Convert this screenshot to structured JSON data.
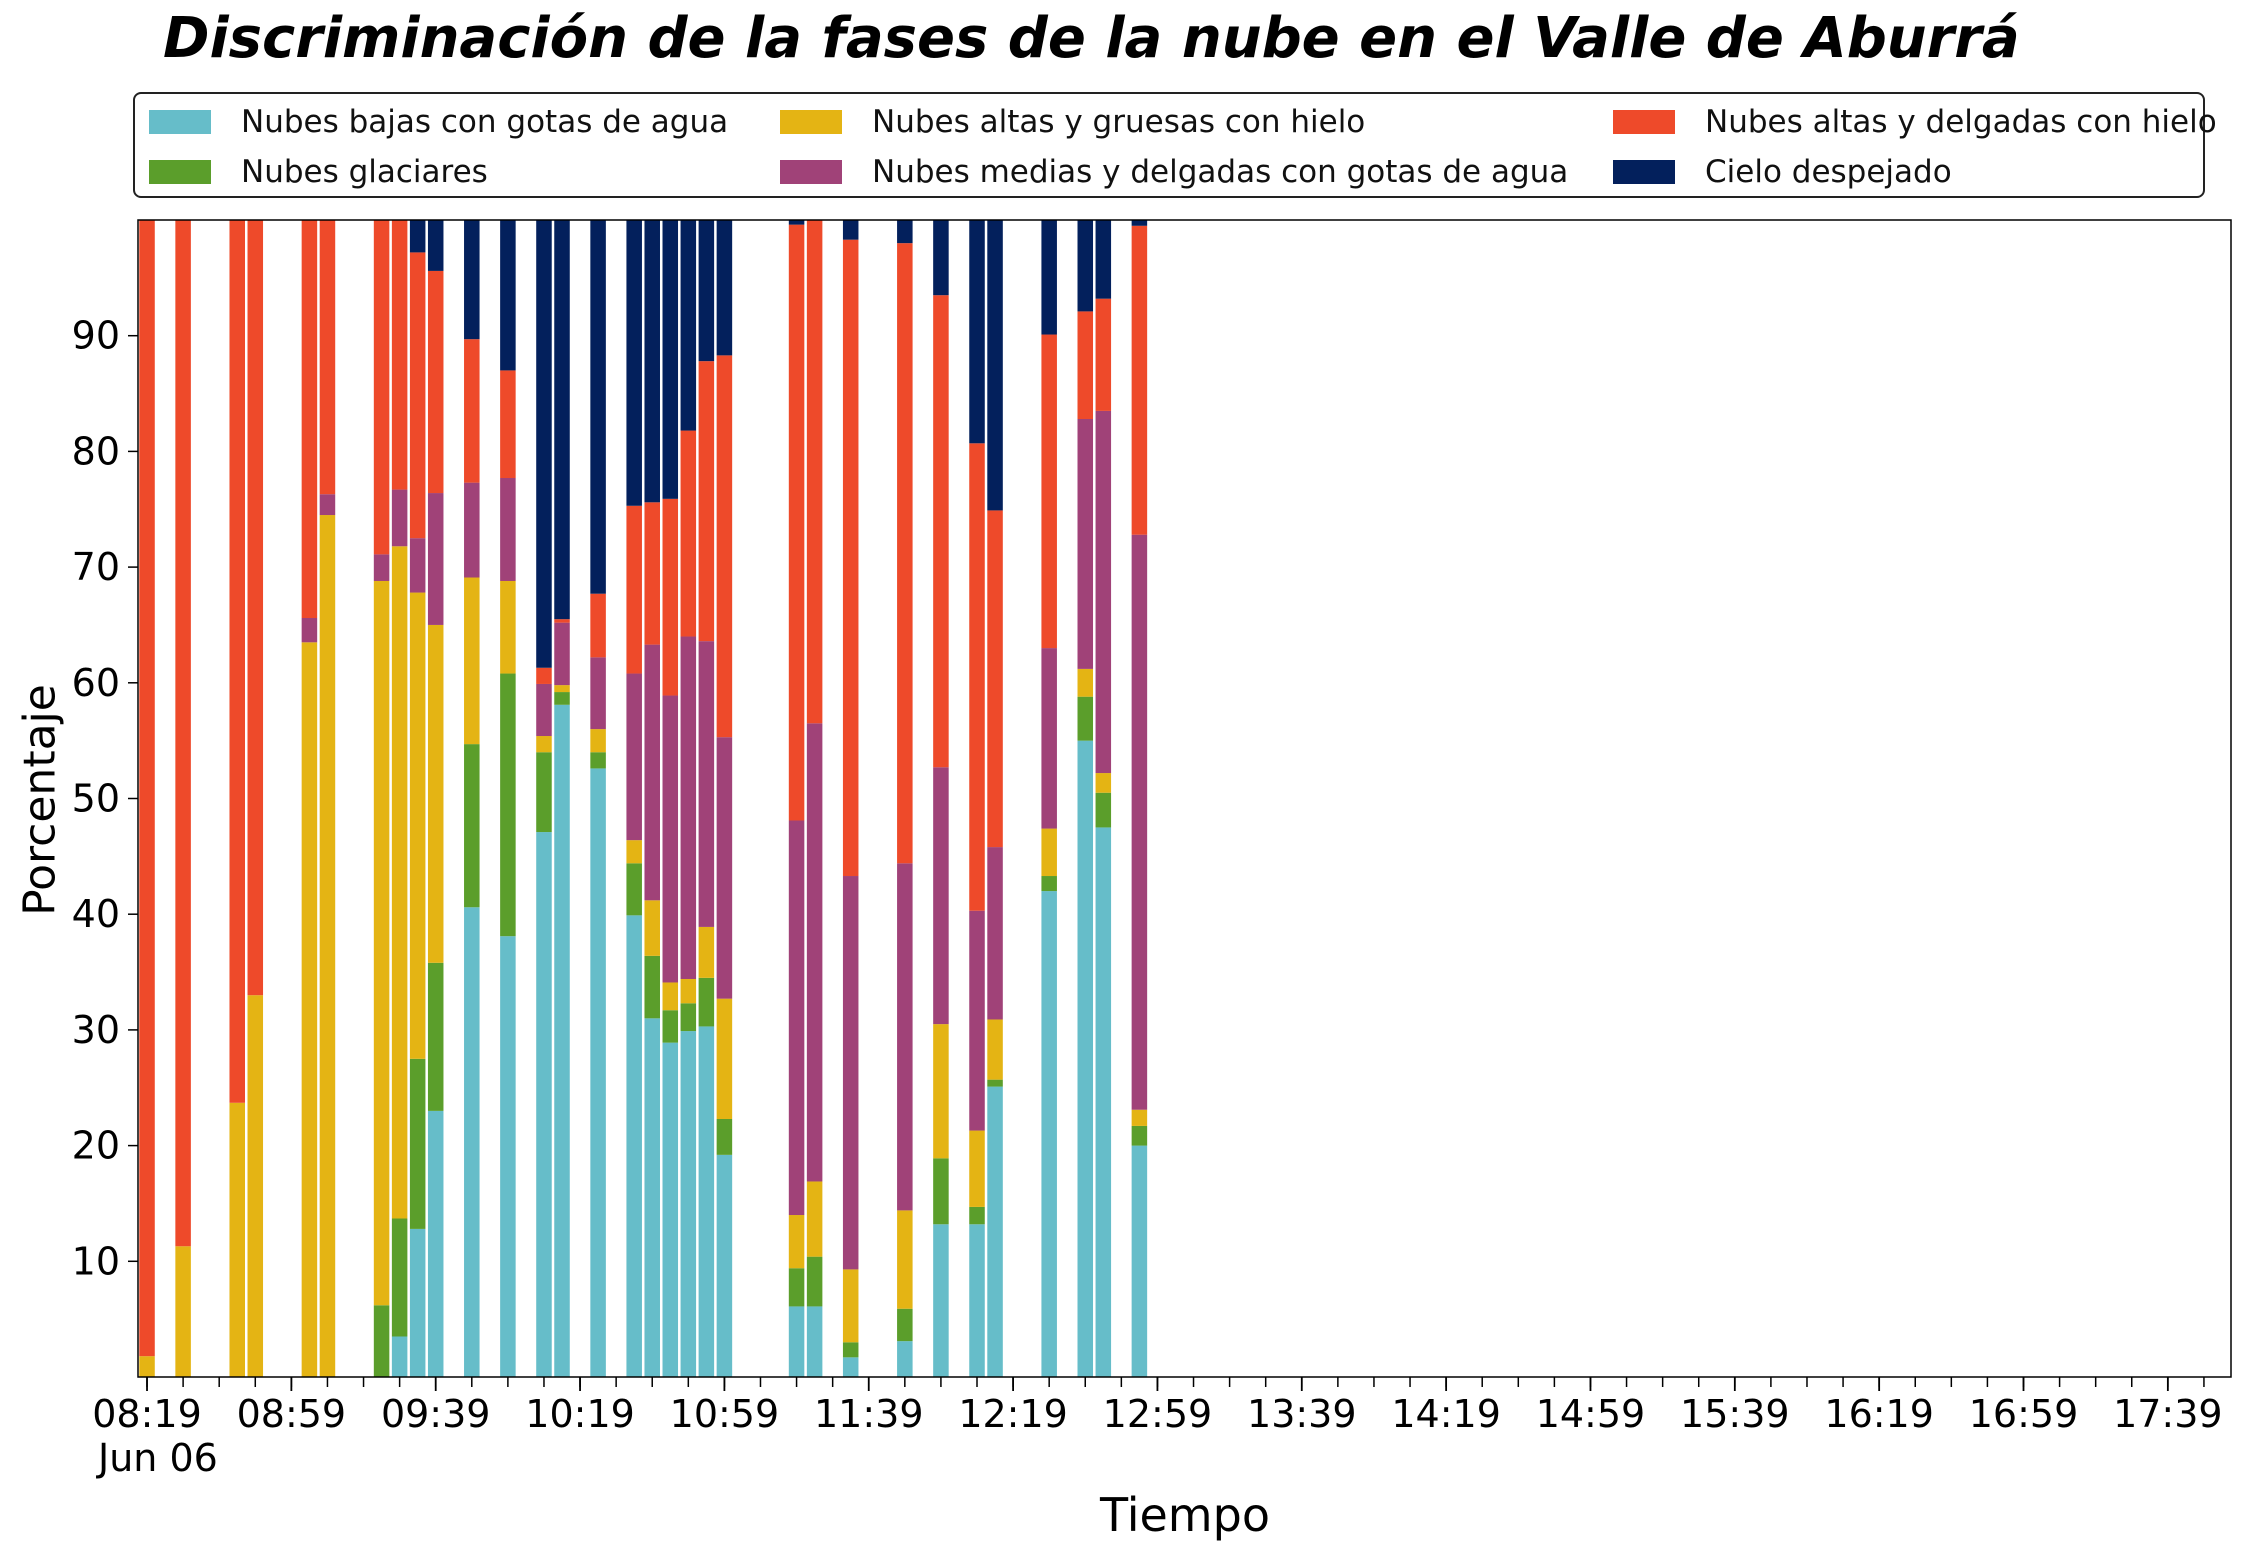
{
  "chart_data": {
    "type": "bar",
    "stacked": true,
    "title": "Discriminación de la fases de la nube en el Valle de Aburrá",
    "xlabel": "Tiempo",
    "ylabel": "Porcentaje",
    "date_label": "Jun 06",
    "ylim": [
      0,
      100
    ],
    "yticks": [
      10,
      20,
      30,
      40,
      50,
      60,
      70,
      80,
      90
    ],
    "xtick_labels": [
      "08:19",
      "08:59",
      "09:39",
      "10:19",
      "10:59",
      "11:39",
      "12:19",
      "12:59",
      "13:39",
      "14:19",
      "14:59",
      "15:39",
      "16:19",
      "16:59",
      "17:39"
    ],
    "legend_position": "top",
    "grid": false,
    "categories": [
      "08:19",
      "08:24",
      "08:29",
      "08:34",
      "08:39",
      "08:44",
      "08:49",
      "08:54",
      "08:59",
      "09:04",
      "09:09",
      "09:14",
      "09:19",
      "09:24",
      "09:29",
      "09:34",
      "09:39",
      "09:44",
      "09:49",
      "09:54",
      "09:59",
      "10:04",
      "10:09",
      "10:14",
      "10:19",
      "10:24",
      "10:29",
      "10:34",
      "10:39",
      "10:44",
      "10:49",
      "10:54",
      "10:59",
      "11:04",
      "11:09",
      "11:14",
      "11:19",
      "11:24",
      "11:29",
      "11:34",
      "11:39",
      "11:44",
      "11:49",
      "11:54",
      "11:59",
      "12:04",
      "12:09",
      "12:14",
      "12:19",
      "12:24",
      "12:29",
      "12:34",
      "12:39",
      "12:44",
      "12:49",
      "12:54",
      "12:59",
      "13:04",
      "13:09",
      "13:14",
      "13:19",
      "13:24",
      "13:29",
      "13:34",
      "13:39",
      "13:44",
      "13:49",
      "13:54",
      "13:59",
      "14:04",
      "14:09",
      "14:14",
      "14:19",
      "14:24",
      "14:29",
      "14:34",
      "14:39",
      "14:44",
      "14:49",
      "14:54",
      "14:59",
      "15:04",
      "15:09",
      "15:14",
      "15:19",
      "15:24",
      "15:29",
      "15:34",
      "15:39",
      "15:44",
      "15:49",
      "15:54",
      "15:59",
      "16:04",
      "16:09",
      "16:14",
      "16:19",
      "16:24",
      "16:29",
      "16:34",
      "16:39",
      "16:44",
      "16:49",
      "16:54",
      "16:59",
      "17:04",
      "17:09",
      "17:14",
      "17:19",
      "17:24",
      "17:29",
      "17:34",
      "17:39",
      "17:44",
      "17:49",
      "17:54"
    ],
    "bars": [
      {
        "time": "08:19",
        "values": [
          0,
          0,
          1.8,
          0,
          98.2,
          0
        ]
      },
      {
        "time": "08:29",
        "values": [
          0,
          0,
          11.3,
          0,
          88.7,
          0
        ]
      },
      {
        "time": "08:44",
        "values": [
          0,
          0,
          23.7,
          0,
          76.3,
          0
        ]
      },
      {
        "time": "08:49",
        "values": [
          0,
          0,
          33.0,
          0,
          67.0,
          0
        ]
      },
      {
        "time": "09:04",
        "values": [
          0,
          0,
          63.5,
          2.1,
          34.4,
          0
        ]
      },
      {
        "time": "09:09",
        "values": [
          0,
          0,
          74.5,
          1.8,
          23.7,
          0
        ]
      },
      {
        "time": "09:24",
        "values": [
          0,
          6.2,
          62.6,
          2.3,
          28.9,
          0
        ]
      },
      {
        "time": "09:29",
        "values": [
          3.5,
          10.2,
          58.1,
          4.9,
          23.3,
          0
        ]
      },
      {
        "time": "09:34",
        "values": [
          12.8,
          14.7,
          40.3,
          4.7,
          24.7,
          2.8
        ]
      },
      {
        "time": "09:39",
        "values": [
          23.0,
          12.8,
          29.2,
          11.4,
          19.2,
          4.4
        ]
      },
      {
        "time": "09:49",
        "values": [
          40.6,
          14.1,
          14.4,
          8.2,
          12.4,
          10.3
        ]
      },
      {
        "time": "09:59",
        "values": [
          38.1,
          22.7,
          8.0,
          8.9,
          9.3,
          13.0
        ]
      },
      {
        "time": "10:09",
        "values": [
          47.1,
          6.9,
          1.4,
          4.5,
          1.4,
          38.7
        ]
      },
      {
        "time": "10:14",
        "values": [
          58.1,
          1.1,
          0.6,
          5.4,
          0.3,
          34.5
        ]
      },
      {
        "time": "10:24",
        "values": [
          52.6,
          1.4,
          2.0,
          6.2,
          5.5,
          32.3
        ]
      },
      {
        "time": "10:34",
        "values": [
          39.9,
          4.5,
          2.0,
          14.4,
          14.5,
          24.7
        ]
      },
      {
        "time": "10:39",
        "values": [
          31.0,
          5.4,
          4.8,
          22.1,
          12.3,
          24.4
        ]
      },
      {
        "time": "10:44",
        "values": [
          28.9,
          2.8,
          2.4,
          24.8,
          17.0,
          24.1
        ]
      },
      {
        "time": "10:49",
        "values": [
          29.9,
          2.4,
          2.1,
          29.6,
          17.8,
          18.2
        ]
      },
      {
        "time": "10:54",
        "values": [
          30.3,
          4.2,
          4.4,
          24.7,
          24.2,
          12.2
        ]
      },
      {
        "time": "10:59",
        "values": [
          19.2,
          3.1,
          10.4,
          22.6,
          33.0,
          11.7
        ]
      },
      {
        "time": "11:19",
        "values": [
          6.1,
          3.3,
          4.6,
          34.1,
          51.5,
          0.7
        ]
      },
      {
        "time": "11:24",
        "values": [
          6.1,
          4.3,
          6.5,
          39.6,
          43.8,
          0.4
        ]
      },
      {
        "time": "11:34",
        "values": [
          1.7,
          1.3,
          6.3,
          34.0,
          55.0,
          1.7
        ]
      },
      {
        "time": "11:49",
        "values": [
          3.1,
          2.8,
          8.5,
          30.0,
          53.6,
          2.0
        ]
      },
      {
        "time": "11:59",
        "values": [
          13.2,
          5.7,
          11.6,
          22.2,
          40.8,
          6.6
        ]
      },
      {
        "time": "12:09",
        "values": [
          13.2,
          1.5,
          6.6,
          19.0,
          40.4,
          19.3
        ]
      },
      {
        "time": "12:14",
        "values": [
          25.1,
          0.6,
          5.2,
          14.9,
          29.1,
          25.1
        ]
      },
      {
        "time": "12:29",
        "values": [
          42.0,
          1.3,
          4.1,
          15.6,
          27.1,
          25.4
        ]
      },
      {
        "time": "12:39",
        "values": [
          55.0,
          3.8,
          2.4,
          21.6,
          9.3,
          7.9
        ]
      },
      {
        "time": "12:44",
        "values": [
          47.5,
          3.0,
          1.7,
          31.3,
          9.7,
          6.8
        ]
      },
      {
        "time": "12:54",
        "values": [
          20.0,
          1.7,
          1.4,
          49.7,
          26.7,
          0.5
        ]
      }
    ],
    "series": [
      {
        "name": "Nubes bajas con gotas de agua",
        "color": "#66bdc9"
      },
      {
        "name": "Nubes glaciares",
        "color": "#5b9e2b"
      },
      {
        "name": "Nubes altas y gruesas con hielo",
        "color": "#e4b414"
      },
      {
        "name": "Nubes medias y delgadas con gotas de agua",
        "color": "#a04278"
      },
      {
        "name": "Nubes altas y delgadas con hielo",
        "color": "#ee4a2a"
      },
      {
        "name": "Cielo despejado",
        "color": "#03205c"
      }
    ]
  }
}
